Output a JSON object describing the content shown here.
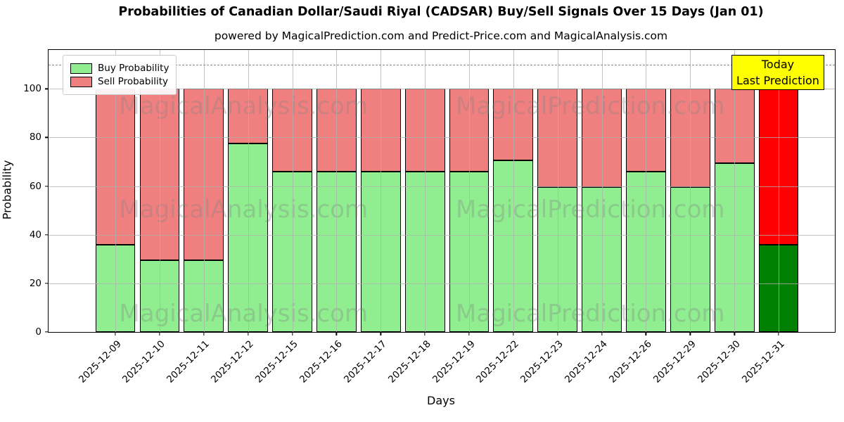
{
  "title": "Probabilities of Canadian Dollar/Saudi Riyal (CADSAR) Buy/Sell Signals Over 15 Days (Jan 01)",
  "subtitle": "powered by MagicalPrediction.com and Predict-Price.com and MagicalAnalysis.com",
  "axes": {
    "x_label": "Days",
    "y_label": "Probability",
    "y_ticks": [
      0,
      20,
      40,
      60,
      80,
      100
    ],
    "dashed_line_y": 110
  },
  "legend": {
    "items": [
      {
        "label": "Buy Probability",
        "color": "#90ee90"
      },
      {
        "label": "Sell Probability",
        "color": "#f08080"
      }
    ]
  },
  "annotation_box": {
    "lines": [
      "Today",
      "Last Prediction"
    ],
    "bg_color": "#ffff00"
  },
  "watermarks": [
    "MagicalAnalysis.com",
    "MagicalPrediction.com"
  ],
  "chart_data": {
    "type": "bar",
    "stacked": true,
    "title": "Probabilities of Canadian Dollar/Saudi Riyal (CADSAR) Buy/Sell Signals Over 15 Days (Jan 01)",
    "xlabel": "Days",
    "ylabel": "Probability",
    "ylim": [
      0,
      116
    ],
    "grid": true,
    "legend_position": "upper left",
    "categories": [
      "2025-12-09",
      "2025-12-10",
      "2025-12-11",
      "2025-12-12",
      "2025-12-15",
      "2025-12-16",
      "2025-12-17",
      "2025-12-18",
      "2025-12-19",
      "2025-12-22",
      "2025-12-23",
      "2025-12-24",
      "2025-12-26",
      "2025-12-29",
      "2025-12-30",
      "2025-12-31"
    ],
    "series": [
      {
        "name": "Buy Probability",
        "values": [
          36,
          29.5,
          29.5,
          77.5,
          66,
          66,
          66,
          66,
          66,
          70.5,
          59.5,
          59.5,
          66,
          59.5,
          69.5,
          36
        ]
      },
      {
        "name": "Sell Probability",
        "values": [
          64,
          70.5,
          70.5,
          22.5,
          34,
          34,
          34,
          34,
          34,
          29.5,
          40.5,
          40.5,
          34,
          40.5,
          30.5,
          64
        ]
      }
    ],
    "colors": {
      "buy": "#90ee90",
      "sell": "#f08080",
      "today_buy": "#008000",
      "today_sell": "#ff0000",
      "edge": "#000000"
    },
    "today_index": 15
  }
}
